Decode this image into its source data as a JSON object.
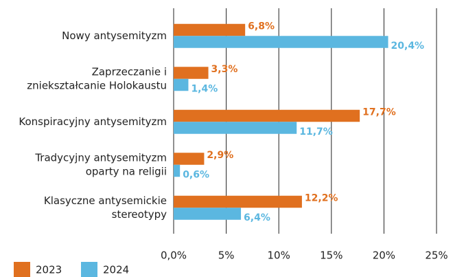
{
  "chart_data": {
    "type": "bar",
    "orientation": "horizontal",
    "categories": [
      [
        "Nowy antysemityzm"
      ],
      [
        "Zaprzeczanie i",
        "zniekształcanie Holokaustu"
      ],
      [
        "Konspiracyjny antysemityzm"
      ],
      [
        "Tradycyjny antysemityzm",
        "oparty na religii"
      ],
      [
        "Klasyczne antysemickie",
        "stereotypy"
      ]
    ],
    "series": [
      {
        "name": "2023",
        "color": "#e0701f",
        "values": [
          6.8,
          3.3,
          17.7,
          2.9,
          12.2
        ],
        "value_labels": [
          "6,8%",
          "3,3%",
          "17,7%",
          "2,9%",
          "12,2%"
        ]
      },
      {
        "name": "2024",
        "color": "#5bb7e0",
        "values": [
          20.4,
          1.4,
          11.7,
          0.6,
          6.4
        ],
        "value_labels": [
          "20,4%",
          "1,4%",
          "11,7%",
          "0,6%",
          "6,4%"
        ]
      }
    ],
    "xlim": [
      0,
      25
    ],
    "xticks": [
      {
        "value": 0,
        "label": "0,0%"
      },
      {
        "value": 5,
        "label": "5%"
      },
      {
        "value": 10,
        "label": "10%"
      },
      {
        "value": 15,
        "label": "15%"
      },
      {
        "value": 20,
        "label": "20%"
      },
      {
        "value": 25,
        "label": "25%"
      }
    ],
    "grid": true,
    "legend": "bottom-left"
  }
}
